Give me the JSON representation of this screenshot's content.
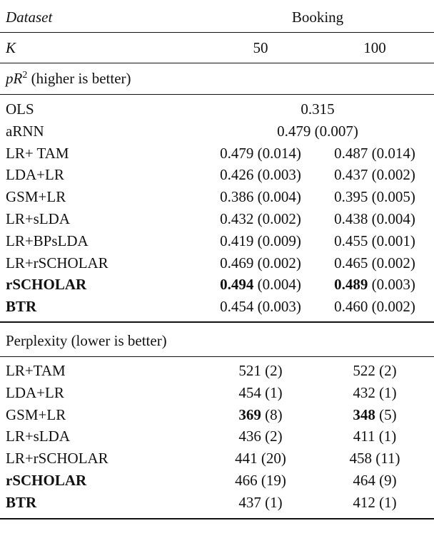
{
  "header": {
    "dataset_label": "Dataset",
    "dataset": "Booking",
    "k_label": "K",
    "k_values": [
      "50",
      "100"
    ]
  },
  "sections": [
    {
      "title_math": "pR",
      "title_sup": "2",
      "title": "(higher is better)",
      "rows": [
        {
          "name": "OLS",
          "cells": [
            {
              "value": "0.315"
            }
          ]
        },
        {
          "name": "aRNN",
          "cells": [
            {
              "value": "0.479",
              "sd": "(0.007)"
            }
          ]
        },
        {
          "name": "LR+ TAM",
          "cells": [
            {
              "value": "0.479",
              "sd": "(0.014)"
            },
            {
              "value": "0.487",
              "sd": "(0.014)"
            }
          ]
        },
        {
          "name": "LDA+LR",
          "cells": [
            {
              "value": "0.426",
              "sd": "(0.003)"
            },
            {
              "value": "0.437",
              "sd": "(0.002)"
            }
          ]
        },
        {
          "name": "GSM+LR",
          "cells": [
            {
              "value": "0.386",
              "sd": "(0.004)"
            },
            {
              "value": "0.395",
              "sd": "(0.005)"
            }
          ]
        },
        {
          "name": "LR+sLDA",
          "cells": [
            {
              "value": "0.432",
              "sd": "(0.002)"
            },
            {
              "value": "0.438",
              "sd": "(0.004)"
            }
          ]
        },
        {
          "name": "LR+BPsLDA",
          "cells": [
            {
              "value": "0.419",
              "sd": "(0.009)"
            },
            {
              "value": "0.455",
              "sd": "(0.001)"
            }
          ]
        },
        {
          "name": "LR+rSCHOLAR",
          "cells": [
            {
              "value": "0.469",
              "sd": "(0.002)"
            },
            {
              "value": "0.465",
              "sd": "(0.002)"
            }
          ]
        },
        {
          "name": "rSCHOLAR",
          "bold": true,
          "cells": [
            {
              "value": "0.494",
              "sd": "(0.004)",
              "bold": true
            },
            {
              "value": "0.489",
              "sd": "(0.003)",
              "bold": true
            }
          ]
        },
        {
          "name": "BTR",
          "bold": true,
          "cells": [
            {
              "value": "0.454",
              "sd": "(0.003)"
            },
            {
              "value": "0.460",
              "sd": "(0.002)"
            }
          ]
        }
      ]
    },
    {
      "title": "Perplexity (lower is better)",
      "rows": [
        {
          "name": "LR+TAM",
          "cells": [
            {
              "value": "521",
              "sd": "(2)"
            },
            {
              "value": "522",
              "sd": "(2)"
            }
          ]
        },
        {
          "name": "LDA+LR",
          "cells": [
            {
              "value": "454",
              "sd": "(1)"
            },
            {
              "value": "432",
              "sd": "(1)"
            }
          ]
        },
        {
          "name": "GSM+LR",
          "cells": [
            {
              "value": "369",
              "sd": "(8)",
              "bold": true
            },
            {
              "value": "348",
              "sd": "(5)",
              "bold": true
            }
          ]
        },
        {
          "name": "LR+sLDA",
          "cells": [
            {
              "value": "436",
              "sd": "(2)"
            },
            {
              "value": "411",
              "sd": "(1)"
            }
          ]
        },
        {
          "name": "LR+rSCHOLAR",
          "cells": [
            {
              "value": "441",
              "sd": "(20)"
            },
            {
              "value": "458",
              "sd": "(11)"
            }
          ]
        },
        {
          "name": "rSCHOLAR",
          "bold": true,
          "cells": [
            {
              "value": "466",
              "sd": "(19)"
            },
            {
              "value": "464",
              "sd": "(9)"
            }
          ]
        },
        {
          "name": "BTR",
          "bold": true,
          "cells": [
            {
              "value": "437",
              "sd": "(1)"
            },
            {
              "value": "412",
              "sd": "(1)"
            }
          ]
        }
      ]
    }
  ]
}
